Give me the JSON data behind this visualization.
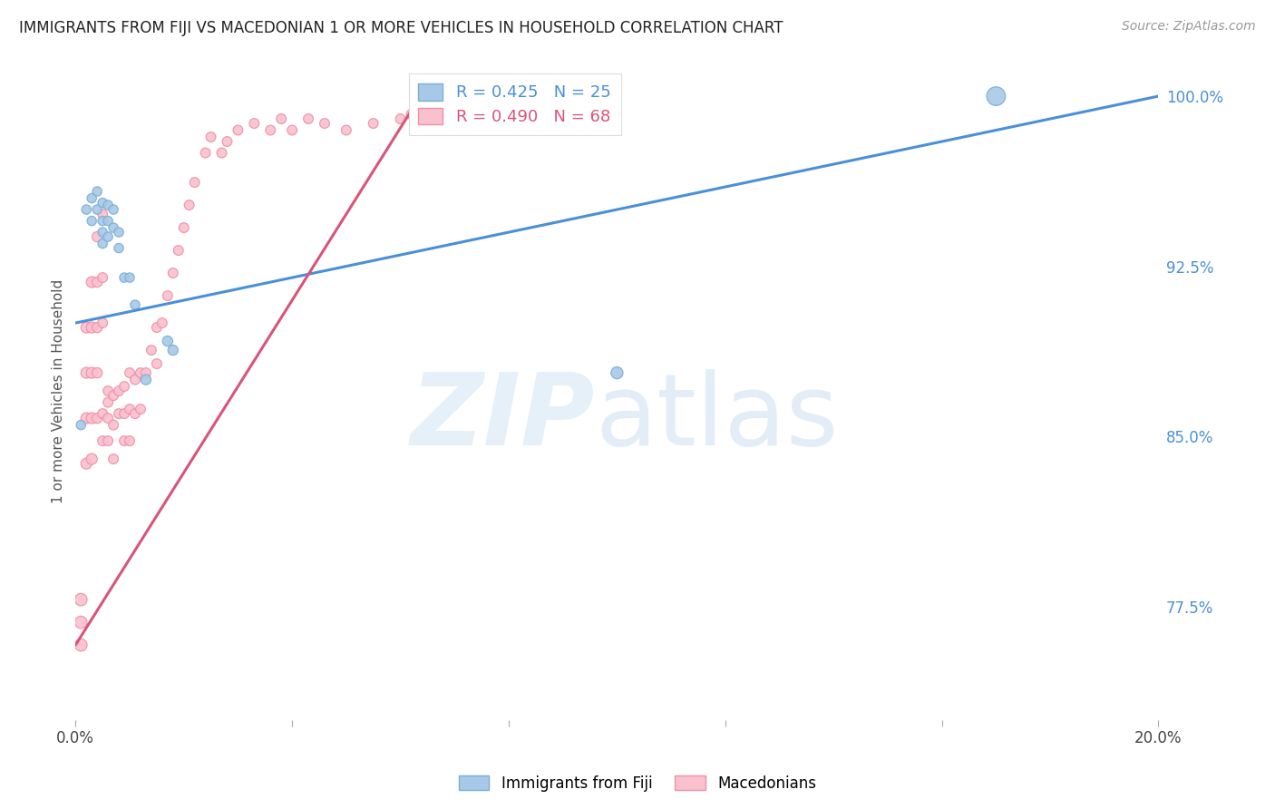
{
  "title": "IMMIGRANTS FROM FIJI VS MACEDONIAN 1 OR MORE VEHICLES IN HOUSEHOLD CORRELATION CHART",
  "source": "Source: ZipAtlas.com",
  "ylabel": "1 or more Vehicles in Household",
  "xlim": [
    0.0,
    0.2
  ],
  "ylim": [
    0.725,
    1.015
  ],
  "xticks": [
    0.0,
    0.04,
    0.08,
    0.12,
    0.16,
    0.2
  ],
  "xtick_labels": [
    "0.0%",
    "",
    "",
    "",
    "",
    "20.0%"
  ],
  "ytick_labels": [
    "77.5%",
    "85.0%",
    "92.5%",
    "100.0%"
  ],
  "ytick_positions": [
    0.775,
    0.85,
    0.925,
    1.0
  ],
  "fiji_color": "#a8c8e8",
  "fiji_edge_color": "#7aafd4",
  "macedonian_color": "#f9c0ce",
  "macedonian_edge_color": "#f090a8",
  "fiji_R": 0.425,
  "fiji_N": 25,
  "macedonian_R": 0.49,
  "macedonian_N": 68,
  "trend_blue": "#4a90d9",
  "trend_pink": "#d9547a",
  "fiji_x": [
    0.001,
    0.002,
    0.003,
    0.003,
    0.004,
    0.004,
    0.005,
    0.005,
    0.005,
    0.005,
    0.006,
    0.006,
    0.006,
    0.007,
    0.007,
    0.008,
    0.008,
    0.009,
    0.01,
    0.011,
    0.013,
    0.017,
    0.018,
    0.1,
    0.17
  ],
  "fiji_y": [
    0.855,
    0.95,
    0.955,
    0.945,
    0.958,
    0.95,
    0.953,
    0.945,
    0.94,
    0.935,
    0.952,
    0.945,
    0.938,
    0.95,
    0.942,
    0.94,
    0.933,
    0.92,
    0.92,
    0.908,
    0.875,
    0.892,
    0.888,
    0.878,
    1.0
  ],
  "fiji_size": [
    55,
    55,
    55,
    55,
    55,
    55,
    55,
    55,
    55,
    55,
    55,
    55,
    55,
    55,
    55,
    55,
    55,
    55,
    55,
    55,
    65,
    65,
    65,
    90,
    220
  ],
  "macedonian_x": [
    0.001,
    0.001,
    0.001,
    0.002,
    0.002,
    0.002,
    0.002,
    0.003,
    0.003,
    0.003,
    0.003,
    0.003,
    0.004,
    0.004,
    0.004,
    0.004,
    0.004,
    0.005,
    0.005,
    0.005,
    0.005,
    0.005,
    0.006,
    0.006,
    0.006,
    0.006,
    0.007,
    0.007,
    0.007,
    0.008,
    0.008,
    0.009,
    0.009,
    0.009,
    0.01,
    0.01,
    0.01,
    0.011,
    0.011,
    0.012,
    0.012,
    0.013,
    0.014,
    0.015,
    0.015,
    0.016,
    0.017,
    0.018,
    0.019,
    0.02,
    0.021,
    0.022,
    0.024,
    0.025,
    0.027,
    0.028,
    0.03,
    0.033,
    0.036,
    0.038,
    0.04,
    0.043,
    0.046,
    0.05,
    0.055,
    0.06,
    0.062,
    0.065
  ],
  "macedonian_y": [
    0.758,
    0.778,
    0.768,
    0.838,
    0.858,
    0.878,
    0.898,
    0.918,
    0.858,
    0.878,
    0.898,
    0.84,
    0.858,
    0.878,
    0.898,
    0.918,
    0.938,
    0.948,
    0.92,
    0.9,
    0.86,
    0.848,
    0.87,
    0.858,
    0.848,
    0.865,
    0.868,
    0.855,
    0.84,
    0.87,
    0.86,
    0.872,
    0.86,
    0.848,
    0.878,
    0.862,
    0.848,
    0.875,
    0.86,
    0.878,
    0.862,
    0.878,
    0.888,
    0.898,
    0.882,
    0.9,
    0.912,
    0.922,
    0.932,
    0.942,
    0.952,
    0.962,
    0.975,
    0.982,
    0.975,
    0.98,
    0.985,
    0.988,
    0.985,
    0.99,
    0.985,
    0.99,
    0.988,
    0.985,
    0.988,
    0.99,
    0.992,
    0.995
  ],
  "macedonian_size": [
    95,
    95,
    95,
    75,
    75,
    75,
    75,
    75,
    75,
    75,
    75,
    75,
    65,
    65,
    65,
    65,
    65,
    60,
    60,
    60,
    60,
    60,
    60,
    60,
    60,
    60,
    60,
    60,
    60,
    60,
    60,
    60,
    60,
    60,
    60,
    60,
    60,
    60,
    60,
    60,
    60,
    60,
    60,
    60,
    60,
    60,
    60,
    60,
    60,
    60,
    60,
    60,
    60,
    60,
    60,
    60,
    60,
    60,
    60,
    60,
    60,
    60,
    60,
    60,
    60,
    60,
    60,
    60
  ],
  "blue_trend_x0": 0.0,
  "blue_trend_y0": 0.9,
  "blue_trend_x1": 0.2,
  "blue_trend_y1": 1.0,
  "pink_trend_x0": 0.0,
  "pink_trend_y0": 0.758,
  "pink_trend_x1": 0.065,
  "pink_trend_y1": 1.005
}
